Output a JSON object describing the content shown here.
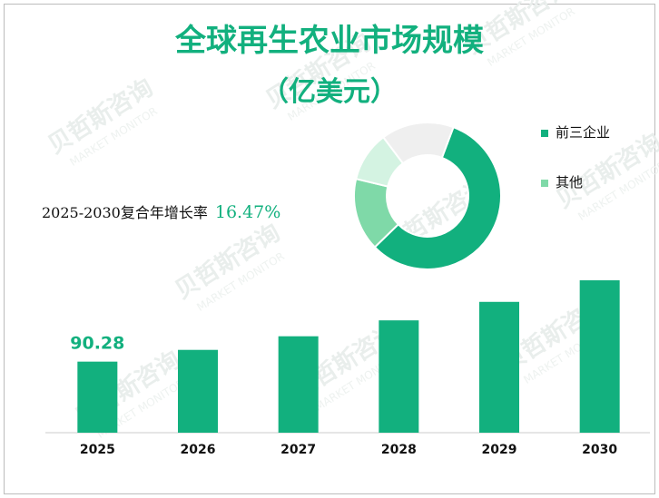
{
  "title_line1": "全球再生农业市场规模",
  "title_line2": "（亿美元）",
  "cagr": {
    "label": "2025-2030复合年增长率",
    "value": "16.47%"
  },
  "legend": [
    {
      "label": "前三企业",
      "color": "#12b07e"
    },
    {
      "label": "其他",
      "color": "#7fd9a8"
    }
  ],
  "watermark": {
    "brand": "贝哲斯咨询",
    "sub": "MARKET MONITOR"
  },
  "chart_data": [
    {
      "type": "bar",
      "categories": [
        "2025",
        "2026",
        "2027",
        "2028",
        "2029",
        "2030"
      ],
      "values": [
        90.28,
        105.2,
        122.5,
        142.7,
        166.2,
        193.6
      ],
      "value_labels": [
        "90.28",
        "",
        "",
        "",
        "",
        ""
      ],
      "color": "#12b07e",
      "ylim": [
        0,
        193.6
      ],
      "grid": false,
      "axis_clipped": true
    },
    {
      "type": "pie",
      "donut": true,
      "slices": [
        {
          "name": "前三企业",
          "value": 57,
          "color": "#12b07e"
        },
        {
          "name": "其他",
          "value": 16,
          "color": "#7fd9a8"
        },
        {
          "name": "其他",
          "value": 11,
          "color": "#d4f3e2"
        },
        {
          "name": "其他",
          "value": 16,
          "color": "#efefef"
        }
      ]
    }
  ]
}
